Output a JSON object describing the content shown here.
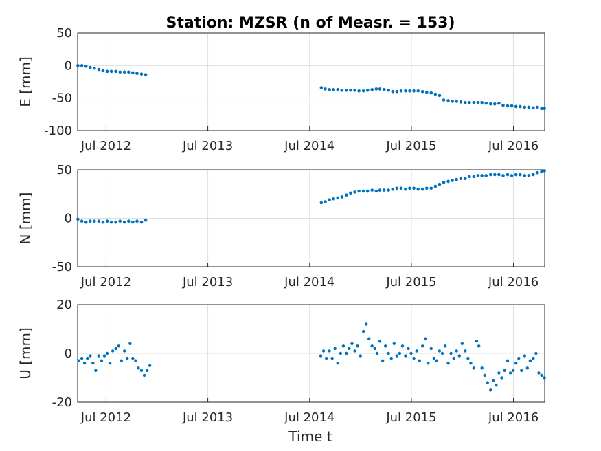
{
  "chart_data": {
    "type": "scatter",
    "title": "Station: MZSR (n of Measr. = 153)",
    "xlabel": "Time t",
    "x_ticks": [
      "Jul 2012",
      "Jul 2013",
      "Jul 2014",
      "Jul 2015",
      "Jul 2016"
    ],
    "xlim": [
      "2012-03-21",
      "2016-10-21"
    ],
    "grid": true,
    "marker_color": "#0072bd",
    "panels": [
      {
        "ylabel": "E [mm]",
        "ylim": [
          -100,
          50
        ],
        "yticks": [
          "50",
          "0",
          "-50",
          "-100"
        ],
        "points": [
          [
            "2012-03-22",
            0
          ],
          [
            "2012-04-05",
            0
          ],
          [
            "2012-04-20",
            -1
          ],
          [
            "2012-05-05",
            -3
          ],
          [
            "2012-05-20",
            -4
          ],
          [
            "2012-06-05",
            -6
          ],
          [
            "2012-06-20",
            -8
          ],
          [
            "2012-07-05",
            -9
          ],
          [
            "2012-07-20",
            -9
          ],
          [
            "2012-08-05",
            -9
          ],
          [
            "2012-08-20",
            -10
          ],
          [
            "2012-09-05",
            -10
          ],
          [
            "2012-09-20",
            -10
          ],
          [
            "2012-10-05",
            -11
          ],
          [
            "2012-10-20",
            -12
          ],
          [
            "2012-11-05",
            -13
          ],
          [
            "2012-11-20",
            -14
          ],
          [
            "2014-08-12",
            -34
          ],
          [
            "2014-08-26",
            -36
          ],
          [
            "2014-09-10",
            -37
          ],
          [
            "2014-09-25",
            -37
          ],
          [
            "2014-10-10",
            -37
          ],
          [
            "2014-10-25",
            -38
          ],
          [
            "2014-11-10",
            -38
          ],
          [
            "2014-11-25",
            -38
          ],
          [
            "2014-12-10",
            -38
          ],
          [
            "2014-12-25",
            -39
          ],
          [
            "2015-01-10",
            -39
          ],
          [
            "2015-01-25",
            -38
          ],
          [
            "2015-02-10",
            -37
          ],
          [
            "2015-02-25",
            -36
          ],
          [
            "2015-03-10",
            -36
          ],
          [
            "2015-03-25",
            -37
          ],
          [
            "2015-04-10",
            -38
          ],
          [
            "2015-04-25",
            -40
          ],
          [
            "2015-05-10",
            -40
          ],
          [
            "2015-05-25",
            -39
          ],
          [
            "2015-06-10",
            -39
          ],
          [
            "2015-06-25",
            -39
          ],
          [
            "2015-07-10",
            -39
          ],
          [
            "2015-07-25",
            -39
          ],
          [
            "2015-08-10",
            -40
          ],
          [
            "2015-08-25",
            -41
          ],
          [
            "2015-09-10",
            -42
          ],
          [
            "2015-09-25",
            -44
          ],
          [
            "2015-10-10",
            -46
          ],
          [
            "2015-10-25",
            -53
          ],
          [
            "2015-11-10",
            -54
          ],
          [
            "2015-11-25",
            -55
          ],
          [
            "2015-12-10",
            -55
          ],
          [
            "2015-12-25",
            -56
          ],
          [
            "2016-01-10",
            -57
          ],
          [
            "2016-01-25",
            -57
          ],
          [
            "2016-02-10",
            -57
          ],
          [
            "2016-02-25",
            -57
          ],
          [
            "2016-03-10",
            -57
          ],
          [
            "2016-03-25",
            -58
          ],
          [
            "2016-04-10",
            -59
          ],
          [
            "2016-04-25",
            -59
          ],
          [
            "2016-05-10",
            -58
          ],
          [
            "2016-05-25",
            -61
          ],
          [
            "2016-06-10",
            -62
          ],
          [
            "2016-06-25",
            -62
          ],
          [
            "2016-07-10",
            -63
          ],
          [
            "2016-07-25",
            -63
          ],
          [
            "2016-08-10",
            -64
          ],
          [
            "2016-08-25",
            -64
          ],
          [
            "2016-09-10",
            -65
          ],
          [
            "2016-09-25",
            -64
          ],
          [
            "2016-10-10",
            -66
          ],
          [
            "2016-10-20",
            -66
          ]
        ]
      },
      {
        "ylabel": "N [mm]",
        "ylim": [
          -50,
          50
        ],
        "yticks": [
          "50",
          "0",
          "-50"
        ],
        "points": [
          [
            "2012-03-22",
            -1
          ],
          [
            "2012-04-05",
            -3
          ],
          [
            "2012-04-20",
            -4
          ],
          [
            "2012-05-05",
            -3
          ],
          [
            "2012-05-20",
            -3
          ],
          [
            "2012-06-05",
            -3
          ],
          [
            "2012-06-20",
            -4
          ],
          [
            "2012-07-05",
            -3
          ],
          [
            "2012-07-20",
            -4
          ],
          [
            "2012-08-05",
            -4
          ],
          [
            "2012-08-20",
            -3
          ],
          [
            "2012-09-05",
            -4
          ],
          [
            "2012-09-20",
            -3
          ],
          [
            "2012-10-05",
            -4
          ],
          [
            "2012-10-20",
            -3
          ],
          [
            "2012-11-05",
            -4
          ],
          [
            "2012-11-20",
            -2
          ],
          [
            "2014-08-12",
            16
          ],
          [
            "2014-08-26",
            17
          ],
          [
            "2014-09-10",
            19
          ],
          [
            "2014-09-25",
            20
          ],
          [
            "2014-10-10",
            21
          ],
          [
            "2014-10-25",
            22
          ],
          [
            "2014-11-10",
            24
          ],
          [
            "2014-11-25",
            26
          ],
          [
            "2014-12-10",
            27
          ],
          [
            "2014-12-25",
            28
          ],
          [
            "2015-01-10",
            28
          ],
          [
            "2015-01-25",
            28
          ],
          [
            "2015-02-10",
            29
          ],
          [
            "2015-02-25",
            28
          ],
          [
            "2015-03-10",
            29
          ],
          [
            "2015-03-25",
            29
          ],
          [
            "2015-04-10",
            29
          ],
          [
            "2015-04-25",
            30
          ],
          [
            "2015-05-10",
            31
          ],
          [
            "2015-05-25",
            31
          ],
          [
            "2015-06-10",
            30
          ],
          [
            "2015-06-25",
            31
          ],
          [
            "2015-07-10",
            31
          ],
          [
            "2015-07-25",
            30
          ],
          [
            "2015-08-10",
            30
          ],
          [
            "2015-08-25",
            31
          ],
          [
            "2015-09-10",
            31
          ],
          [
            "2015-09-25",
            33
          ],
          [
            "2015-10-10",
            35
          ],
          [
            "2015-10-25",
            37
          ],
          [
            "2015-11-10",
            38
          ],
          [
            "2015-11-25",
            39
          ],
          [
            "2015-12-10",
            40
          ],
          [
            "2015-12-25",
            41
          ],
          [
            "2016-01-10",
            41
          ],
          [
            "2016-01-25",
            43
          ],
          [
            "2016-02-10",
            43
          ],
          [
            "2016-02-25",
            44
          ],
          [
            "2016-03-10",
            44
          ],
          [
            "2016-03-25",
            44
          ],
          [
            "2016-04-10",
            45
          ],
          [
            "2016-04-25",
            45
          ],
          [
            "2016-05-10",
            45
          ],
          [
            "2016-05-25",
            44
          ],
          [
            "2016-06-10",
            45
          ],
          [
            "2016-06-25",
            44
          ],
          [
            "2016-07-10",
            45
          ],
          [
            "2016-07-25",
            45
          ],
          [
            "2016-08-10",
            44
          ],
          [
            "2016-08-25",
            44
          ],
          [
            "2016-09-10",
            45
          ],
          [
            "2016-09-25",
            47
          ],
          [
            "2016-10-10",
            48
          ],
          [
            "2016-10-20",
            49
          ]
        ]
      },
      {
        "ylabel": "U [mm]",
        "ylim": [
          -20,
          20
        ],
        "yticks": [
          "20",
          "0",
          "-20"
        ],
        "points": [
          [
            "2012-03-25",
            -3
          ],
          [
            "2012-04-05",
            -2
          ],
          [
            "2012-04-15",
            -4
          ],
          [
            "2012-04-25",
            -2
          ],
          [
            "2012-05-05",
            -1
          ],
          [
            "2012-05-15",
            -4
          ],
          [
            "2012-05-25",
            -7
          ],
          [
            "2012-06-05",
            -1
          ],
          [
            "2012-06-15",
            -3
          ],
          [
            "2012-06-25",
            -1
          ],
          [
            "2012-07-05",
            0
          ],
          [
            "2012-07-15",
            -4
          ],
          [
            "2012-07-25",
            1
          ],
          [
            "2012-08-05",
            2
          ],
          [
            "2012-08-15",
            3
          ],
          [
            "2012-08-25",
            -3
          ],
          [
            "2012-09-05",
            1
          ],
          [
            "2012-09-15",
            -2
          ],
          [
            "2012-09-25",
            4
          ],
          [
            "2012-10-05",
            -2
          ],
          [
            "2012-10-15",
            -3
          ],
          [
            "2012-10-25",
            -6
          ],
          [
            "2012-11-05",
            -7
          ],
          [
            "2012-11-15",
            -9
          ],
          [
            "2012-11-25",
            -7
          ],
          [
            "2012-12-05",
            -5
          ],
          [
            "2014-08-10",
            -1
          ],
          [
            "2014-08-20",
            1
          ],
          [
            "2014-08-30",
            -2
          ],
          [
            "2014-09-10",
            1
          ],
          [
            "2014-09-20",
            -2
          ],
          [
            "2014-09-30",
            2
          ],
          [
            "2014-10-10",
            -4
          ],
          [
            "2014-10-20",
            0
          ],
          [
            "2014-10-30",
            3
          ],
          [
            "2014-11-10",
            0
          ],
          [
            "2014-11-20",
            2
          ],
          [
            "2014-11-30",
            4
          ],
          [
            "2014-12-10",
            1
          ],
          [
            "2014-12-20",
            3
          ],
          [
            "2014-12-30",
            -1
          ],
          [
            "2015-01-10",
            9
          ],
          [
            "2015-01-20",
            12
          ],
          [
            "2015-01-30",
            6
          ],
          [
            "2015-02-10",
            3
          ],
          [
            "2015-02-20",
            2
          ],
          [
            "2015-02-28",
            0
          ],
          [
            "2015-03-10",
            5
          ],
          [
            "2015-03-20",
            -3
          ],
          [
            "2015-03-30",
            3
          ],
          [
            "2015-04-10",
            0
          ],
          [
            "2015-04-20",
            -2
          ],
          [
            "2015-04-30",
            4
          ],
          [
            "2015-05-10",
            -1
          ],
          [
            "2015-05-20",
            0
          ],
          [
            "2015-05-30",
            3
          ],
          [
            "2015-06-10",
            -1
          ],
          [
            "2015-06-20",
            2
          ],
          [
            "2015-06-30",
            0
          ],
          [
            "2015-07-10",
            -2
          ],
          [
            "2015-07-20",
            1
          ],
          [
            "2015-07-30",
            -3
          ],
          [
            "2015-08-10",
            3
          ],
          [
            "2015-08-20",
            6
          ],
          [
            "2015-08-30",
            -4
          ],
          [
            "2015-09-10",
            2
          ],
          [
            "2015-09-20",
            -2
          ],
          [
            "2015-09-30",
            -3
          ],
          [
            "2015-10-10",
            1
          ],
          [
            "2015-10-20",
            0
          ],
          [
            "2015-10-30",
            3
          ],
          [
            "2015-11-10",
            -4
          ],
          [
            "2015-11-20",
            0
          ],
          [
            "2015-11-30",
            -2
          ],
          [
            "2015-12-10",
            1
          ],
          [
            "2015-12-20",
            -1
          ],
          [
            "2015-12-30",
            4
          ],
          [
            "2016-01-10",
            1
          ],
          [
            "2016-01-20",
            -2
          ],
          [
            "2016-01-30",
            -4
          ],
          [
            "2016-02-10",
            -6
          ],
          [
            "2016-02-20",
            5
          ],
          [
            "2016-02-28",
            3
          ],
          [
            "2016-03-10",
            -6
          ],
          [
            "2016-03-20",
            -9
          ],
          [
            "2016-03-30",
            -12
          ],
          [
            "2016-04-10",
            -15
          ],
          [
            "2016-04-20",
            -11
          ],
          [
            "2016-04-30",
            -13
          ],
          [
            "2016-05-10",
            -8
          ],
          [
            "2016-05-20",
            -10
          ],
          [
            "2016-05-30",
            -7
          ],
          [
            "2016-06-10",
            -3
          ],
          [
            "2016-06-20",
            -8
          ],
          [
            "2016-06-30",
            -7
          ],
          [
            "2016-07-10",
            -4
          ],
          [
            "2016-07-20",
            -2
          ],
          [
            "2016-07-30",
            -7
          ],
          [
            "2016-08-10",
            -1
          ],
          [
            "2016-08-20",
            -6
          ],
          [
            "2016-08-30",
            -3
          ],
          [
            "2016-09-10",
            -2
          ],
          [
            "2016-09-20",
            0
          ],
          [
            "2016-09-30",
            -8
          ],
          [
            "2016-10-10",
            -9
          ],
          [
            "2016-10-20",
            -10
          ]
        ]
      }
    ]
  }
}
